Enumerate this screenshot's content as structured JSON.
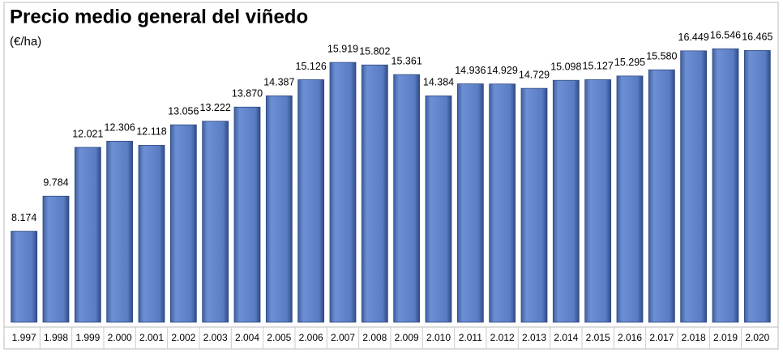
{
  "chart_data": {
    "type": "bar",
    "title": "Precio medio general del viñedo",
    "subtitle": "(€/ha)",
    "categories": [
      "1.997",
      "1.998",
      "1.999",
      "2.000",
      "2.001",
      "2.002",
      "2.003",
      "2.004",
      "2.005",
      "2.006",
      "2.007",
      "2.008",
      "2.009",
      "2.010",
      "2.011",
      "2.012",
      "2.013",
      "2.014",
      "2.015",
      "2.016",
      "2.017",
      "2.018",
      "2.019",
      "2.020"
    ],
    "values": [
      8174,
      9784,
      12021,
      12306,
      12118,
      13056,
      13222,
      13870,
      14387,
      15126,
      15919,
      15802,
      15361,
      14384,
      14936,
      14929,
      14729,
      15098,
      15127,
      15295,
      15580,
      16449,
      16546,
      16465
    ],
    "value_labels": [
      "8.174",
      "9.784",
      "12.021",
      "12.306",
      "12.118",
      "13.056",
      "13.222",
      "13.870",
      "14.387",
      "15.126",
      "15.919",
      "15.802",
      "15.361",
      "14.384",
      "14.936",
      "14.929",
      "14.729",
      "15.098",
      "15.127",
      "15.295",
      "15.580",
      "16.449",
      "16.546",
      "16.465"
    ],
    "color": "#4f73be",
    "ylim": [
      4000,
      17000
    ]
  }
}
